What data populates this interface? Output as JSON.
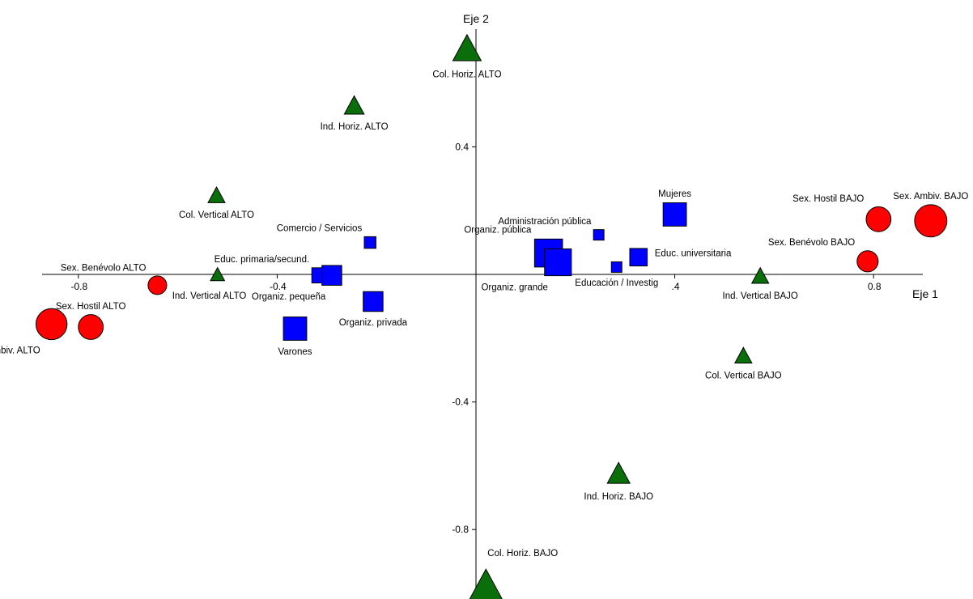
{
  "chart_data": {
    "type": "scatter",
    "xlabel": "Eje 1",
    "ylabel": "Eje 2",
    "xlim": [
      -1.1,
      1.25
    ],
    "ylim": [
      -1.03,
      0.8
    ],
    "xticks": [
      {
        "value": -0.8,
        "label": "-0.8"
      },
      {
        "value": -0.4,
        "label": "-0.4"
      },
      {
        "value": 0.4,
        "label": ".4"
      },
      {
        "value": 0.8,
        "label": "0.8"
      }
    ],
    "yticks": [
      {
        "value": 0.4,
        "label": "0.4"
      },
      {
        "value": -0.4,
        "label": "-0.4"
      },
      {
        "value": -0.8,
        "label": "-0.8"
      }
    ],
    "grid": false,
    "legend": "none",
    "series": [
      {
        "marker": "circle",
        "color": "#ff0000",
        "points": [
          {
            "label": "Sex. Ambiv. ALTO",
            "x": -0.854,
            "y": -0.156,
            "size": 2.5,
            "label_pos": "below-left"
          },
          {
            "label": "Sex. Hostil ALTO",
            "x": -0.775,
            "y": -0.165,
            "size": 2.0,
            "label_pos": "above"
          },
          {
            "label": "Sex. Benévolo ALTO",
            "x": -0.641,
            "y": -0.034,
            "size": 1.5,
            "label_pos": "above-left"
          },
          {
            "label": "Sex. Ambiv. BAJO",
            "x": 0.915,
            "y": 0.168,
            "size": 2.6,
            "label_pos": "above"
          },
          {
            "label": "Sex. Hostil BAJO",
            "x": 0.81,
            "y": 0.173,
            "size": 2.0,
            "label_pos": "above-left"
          },
          {
            "label": "Sex. Benévolo BAJO",
            "x": 0.788,
            "y": 0.041,
            "size": 1.7,
            "label_pos": "above-left"
          }
        ]
      },
      {
        "marker": "triangle",
        "color": "#0a6e0a",
        "points": [
          {
            "label": "Col. Horiz. ALTO",
            "x": -0.018,
            "y": 0.705,
            "size": 2.0,
            "label_pos": "below"
          },
          {
            "label": "Ind. Horiz. ALTO",
            "x": -0.245,
            "y": 0.527,
            "size": 1.4,
            "label_pos": "below"
          },
          {
            "label": "Col. Vertical ALTO",
            "x": -0.522,
            "y": 0.246,
            "size": 1.2,
            "label_pos": "below"
          },
          {
            "label": "Ind. Vertical ALTO",
            "x": -0.52,
            "y": -0.002,
            "size": 1.0,
            "label_pos": "below-right"
          },
          {
            "label": "Ind. Vertical BAJO",
            "x": 0.572,
            "y": -0.007,
            "size": 1.2,
            "label_pos": "below"
          },
          {
            "label": "Col. Vertical BAJO",
            "x": 0.538,
            "y": -0.257,
            "size": 1.2,
            "label_pos": "below"
          },
          {
            "label": "Ind. Horiz. BAJO",
            "x": 0.287,
            "y": -0.627,
            "size": 1.6,
            "label_pos": "below"
          },
          {
            "label": "Col. Horiz. BAJO",
            "x": 0.02,
            "y": -0.985,
            "size": 2.6,
            "label_pos": "above-right"
          }
        ]
      },
      {
        "marker": "square",
        "color": "#0000ff",
        "points": [
          {
            "label": "Mujeres",
            "x": 0.4,
            "y": 0.188,
            "size": 2.0,
            "label_pos": "above"
          },
          {
            "label": "Administración pública",
            "x": 0.247,
            "y": 0.124,
            "size": 0.9,
            "label_pos": "above-left"
          },
          {
            "label": "Educ. universitaria",
            "x": 0.327,
            "y": 0.054,
            "size": 1.5,
            "label_pos": "right"
          },
          {
            "label": "Educación / Investig",
            "x": 0.283,
            "y": 0.023,
            "size": 0.9,
            "label_pos": "below"
          },
          {
            "label": "Organiz. pública",
            "x": 0.146,
            "y": 0.067,
            "size": 2.4,
            "label_pos": "above-left"
          },
          {
            "label": "Organiz. grande",
            "x": 0.165,
            "y": 0.038,
            "size": 2.3,
            "label_pos": "below-left"
          },
          {
            "label": "Comercio / Servicios",
            "x": -0.213,
            "y": 0.1,
            "size": 1.0,
            "label_pos": "above-left"
          },
          {
            "label": "Educ. primaria/secund.",
            "x": -0.315,
            "y": -0.003,
            "size": 1.3,
            "label_pos": "above-left"
          },
          {
            "label": "Organiz. pequeña",
            "x": -0.29,
            "y": -0.003,
            "size": 1.7,
            "label_pos": "below-left"
          },
          {
            "label": "Organiz. privada",
            "x": -0.207,
            "y": -0.085,
            "size": 1.7,
            "label_pos": "below"
          },
          {
            "label": "Varones",
            "x": -0.364,
            "y": -0.17,
            "size": 2.0,
            "label_pos": "below"
          }
        ]
      }
    ]
  }
}
